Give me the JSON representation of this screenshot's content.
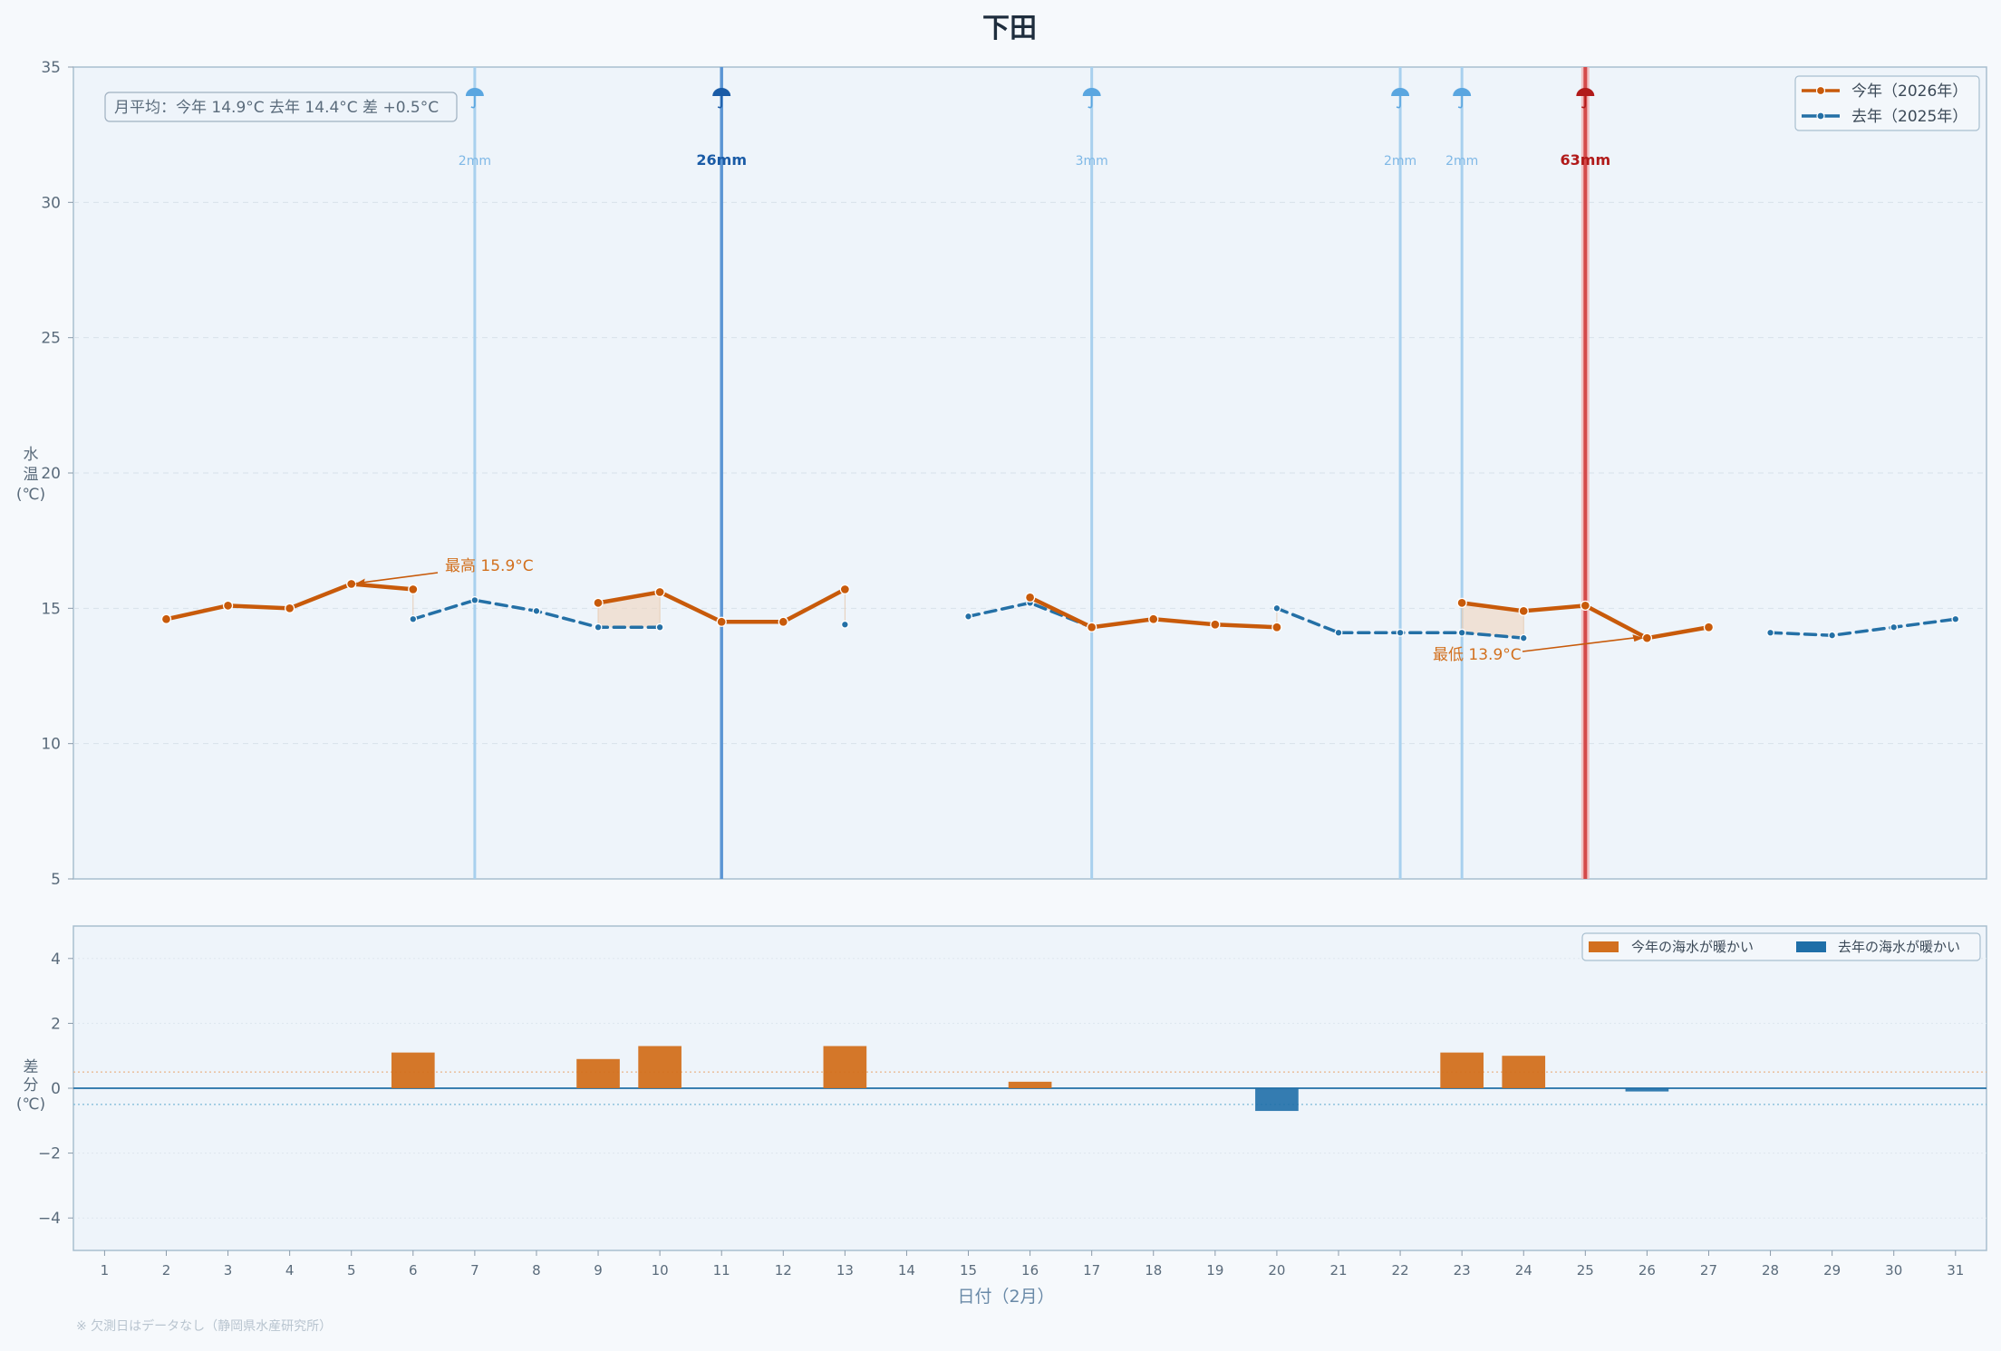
{
  "chart_data": [
    {
      "type": "line",
      "title": "下田",
      "ylabel": "水温(℃)",
      "ylabel_lines": [
        "水",
        "温",
        "(℃)"
      ],
      "ylim": [
        5,
        35
      ],
      "yticks": [
        5,
        10,
        15,
        20,
        25,
        30,
        35
      ],
      "x": [
        1,
        2,
        3,
        4,
        5,
        6,
        7,
        8,
        9,
        10,
        11,
        12,
        13,
        14,
        15,
        16,
        17,
        18,
        19,
        20,
        21,
        22,
        23,
        24,
        25,
        26,
        27,
        28,
        29,
        30,
        31
      ],
      "grid": true,
      "legend_position": "top-right",
      "series": [
        {
          "name": "今年（2026年）",
          "color": "#c85a0a",
          "style": "solid",
          "values": [
            null,
            14.6,
            15.1,
            15.0,
            15.9,
            15.7,
            null,
            null,
            15.2,
            15.6,
            14.5,
            14.5,
            15.7,
            null,
            null,
            15.4,
            14.3,
            14.6,
            14.4,
            14.3,
            null,
            null,
            15.2,
            14.9,
            15.1,
            13.9,
            14.3,
            null,
            null,
            null,
            null
          ]
        },
        {
          "name": "去年（2025年）",
          "color": "#2470a6",
          "style": "dashed",
          "values": [
            null,
            null,
            null,
            null,
            null,
            14.6,
            15.3,
            14.9,
            14.3,
            14.3,
            null,
            null,
            14.4,
            null,
            14.7,
            15.2,
            14.3,
            null,
            null,
            15.0,
            14.1,
            14.1,
            14.1,
            13.9,
            null,
            null,
            null,
            14.1,
            14.0,
            14.3,
            14.6
          ]
        }
      ],
      "rain": [
        {
          "day": 7,
          "label": "2mm",
          "level": "light"
        },
        {
          "day": 11,
          "label": "26mm",
          "level": "medium"
        },
        {
          "day": 17,
          "label": "3mm",
          "level": "light"
        },
        {
          "day": 22,
          "label": "2mm",
          "level": "light"
        },
        {
          "day": 23,
          "label": "2mm",
          "level": "light"
        },
        {
          "day": 25,
          "label": "63mm",
          "level": "heavy"
        }
      ],
      "annotations": [
        {
          "text": "最高 15.9°C",
          "day": 5,
          "value": 15.9
        },
        {
          "text": "最低 13.9°C",
          "day": 26,
          "value": 13.9
        }
      ],
      "summary": "月平均：今年 14.9°C  去年 14.4°C  差 +0.5°C"
    },
    {
      "type": "bar",
      "ylabel": "差分(℃)",
      "ylabel_lines": [
        "差",
        "分",
        "(℃)"
      ],
      "ylim": [
        -5,
        5
      ],
      "yticks": [
        -4,
        -2,
        0,
        2,
        4
      ],
      "ytick_labels": [
        "−4",
        "−2",
        "0",
        "2",
        "4"
      ],
      "xlabel": "日付（2月）",
      "categories": [
        1,
        2,
        3,
        4,
        5,
        6,
        7,
        8,
        9,
        10,
        11,
        12,
        13,
        14,
        15,
        16,
        17,
        18,
        19,
        20,
        21,
        22,
        23,
        24,
        25,
        26,
        27,
        28,
        29,
        30,
        31
      ],
      "values": [
        null,
        null,
        null,
        null,
        null,
        1.1,
        null,
        null,
        0.9,
        1.3,
        null,
        null,
        1.3,
        null,
        null,
        0.2,
        null,
        null,
        null,
        -0.7,
        null,
        null,
        1.1,
        1.0,
        null,
        -0.1,
        null,
        null,
        null,
        null,
        null
      ],
      "threshold_lines": [
        0.5,
        -0.5
      ],
      "legend_position": "top-right",
      "legend": [
        {
          "label": "今年の海水が暖かい",
          "color": "#d2701e"
        },
        {
          "label": "去年の海水が暖かい",
          "color": "#1f6fa8"
        }
      ]
    }
  ],
  "footnote": "※ 欠測日はデータなし（静岡県水産研究所）"
}
